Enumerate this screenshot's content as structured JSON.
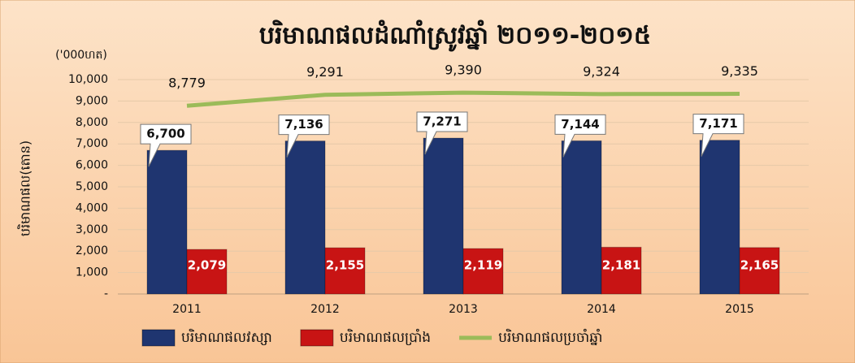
{
  "chart_data": {
    "type": "bar",
    "title": "បរិមាណផលដំណាំស្រូវឆ្នាំ ២០១១-២០១៥",
    "unit_label": "('000ហត)",
    "y_axis_label": "បរិមាណផល(តោន)",
    "categories": [
      "2011",
      "2012",
      "2013",
      "2014",
      "2015"
    ],
    "series": [
      {
        "name": "បរិមាណផលវស្សា",
        "color": "#1f3570",
        "values": [
          6700,
          7136,
          7271,
          7144,
          7171
        ],
        "value_labels": [
          "6,700",
          "7,136",
          "7,271",
          "7,144",
          "7,171"
        ]
      },
      {
        "name": "បរិមាណផលប្រាំង",
        "color": "#c81414",
        "values": [
          2079,
          2155,
          2119,
          2181,
          2165
        ],
        "value_labels": [
          "2,079",
          "2,155",
          "2,119",
          "2,181",
          "2,165"
        ]
      },
      {
        "name": "បរិមាណផលប្រចាំឆ្នាំ",
        "color": "#9bbb59",
        "type": "line",
        "values": [
          8779,
          9291,
          9390,
          9324,
          9335
        ],
        "value_labels": [
          "8,779",
          "9,291",
          "9,390",
          "9,324",
          "9,335"
        ]
      }
    ],
    "ylim": [
      0,
      10000
    ],
    "yticks": [
      {
        "value": 0,
        "label": "-"
      },
      {
        "value": 1000,
        "label": "1,000"
      },
      {
        "value": 2000,
        "label": "2,000"
      },
      {
        "value": 3000,
        "label": "3,000"
      },
      {
        "value": 4000,
        "label": "4,000"
      },
      {
        "value": 5000,
        "label": "5,000"
      },
      {
        "value": 6000,
        "label": "6,000"
      },
      {
        "value": 7000,
        "label": "7,000"
      },
      {
        "value": 8000,
        "label": "8,000"
      },
      {
        "value": 9000,
        "label": "9,000"
      },
      {
        "value": 10000,
        "label": "10,000"
      }
    ],
    "grid": true,
    "legend": "bottom"
  }
}
